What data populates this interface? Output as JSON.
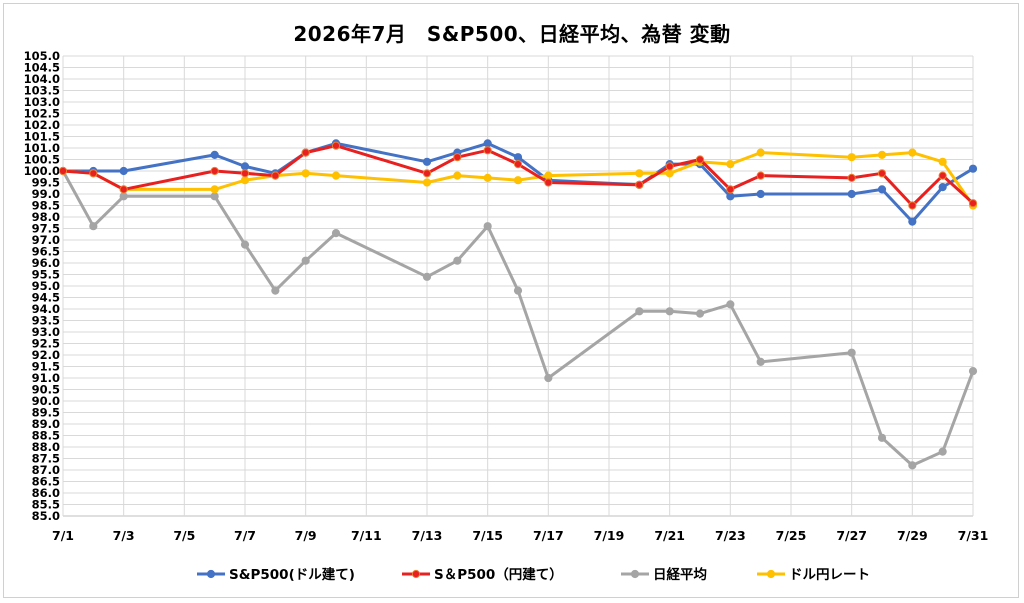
{
  "chart_data": {
    "type": "line",
    "title": "2026年7月　S&P500、日経平均、為替 変動",
    "xlabel": "",
    "ylabel": "",
    "ylim": [
      85.0,
      105.0
    ],
    "ytick_step": 0.5,
    "x_range": [
      1,
      31
    ],
    "x_ticks": [
      "7/1",
      "7/3",
      "7/5",
      "7/7",
      "7/9",
      "7/11",
      "7/13",
      "7/15",
      "7/17",
      "7/19",
      "7/21",
      "7/23",
      "7/25",
      "7/27",
      "7/29",
      "7/31"
    ],
    "grid": true,
    "legend_position": "bottom",
    "series": [
      {
        "name": "S&P500(ドル建て)",
        "color": "#4472c4",
        "x": [
          1,
          2,
          3,
          6,
          7,
          8,
          9,
          10,
          13,
          14,
          15,
          16,
          17,
          20,
          21,
          22,
          23,
          24,
          27,
          28,
          29,
          30,
          31
        ],
        "values": [
          100.0,
          100.0,
          100.0,
          100.7,
          100.2,
          99.9,
          100.8,
          101.2,
          100.4,
          100.8,
          101.2,
          100.6,
          99.6,
          99.4,
          100.3,
          100.3,
          98.9,
          99.0,
          99.0,
          99.2,
          97.8,
          99.3,
          100.1
        ]
      },
      {
        "name": "S＆P500（円建て）",
        "color": "#e82020",
        "x": [
          1,
          2,
          3,
          6,
          7,
          8,
          9,
          10,
          13,
          14,
          15,
          16,
          17,
          20,
          21,
          22,
          23,
          24,
          27,
          28,
          29,
          30,
          31
        ],
        "values": [
          100.0,
          99.9,
          99.2,
          100.0,
          99.9,
          99.8,
          100.8,
          101.1,
          99.9,
          100.6,
          100.9,
          100.3,
          99.5,
          99.4,
          100.2,
          100.5,
          99.2,
          99.8,
          99.7,
          99.9,
          98.5,
          99.8,
          98.6
        ]
      },
      {
        "name": "日経平均",
        "color": "#a5a5a5",
        "x": [
          1,
          2,
          3,
          6,
          7,
          8,
          9,
          10,
          13,
          14,
          15,
          16,
          17,
          20,
          21,
          22,
          23,
          24,
          27,
          28,
          29,
          30,
          31
        ],
        "values": [
          100.0,
          97.6,
          98.9,
          98.9,
          96.8,
          94.8,
          96.1,
          97.3,
          95.4,
          96.1,
          97.6,
          94.8,
          91.0,
          93.9,
          93.9,
          93.8,
          94.2,
          91.7,
          92.1,
          88.4,
          87.2,
          87.8,
          91.3
        ]
      },
      {
        "name": "ドル円レート",
        "color": "#ffc000",
        "x": [
          1,
          2,
          3,
          6,
          7,
          8,
          9,
          10,
          13,
          14,
          15,
          16,
          17,
          20,
          21,
          22,
          23,
          24,
          27,
          28,
          29,
          30,
          31
        ],
        "values": [
          100.0,
          99.9,
          99.2,
          99.2,
          99.6,
          99.8,
          99.9,
          99.8,
          99.5,
          99.8,
          99.7,
          99.6,
          99.8,
          99.9,
          99.9,
          100.4,
          100.3,
          100.8,
          100.6,
          100.7,
          100.8,
          100.4,
          98.5
        ]
      }
    ]
  }
}
